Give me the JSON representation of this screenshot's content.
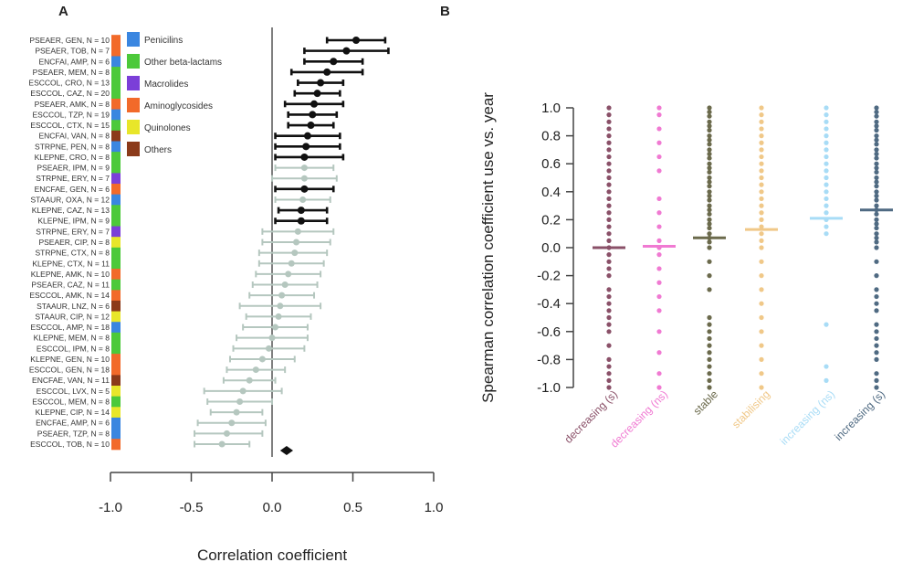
{
  "chart_data": [
    {
      "panel_label": "A",
      "type": "forest",
      "xlabel": "Correlation coefficient",
      "xlim": [
        -1.0,
        1.0
      ],
      "xticks": [
        "-1.0",
        "-0.5",
        "0.0",
        "0.5",
        "1.0"
      ],
      "legend": [
        {
          "label": "Penicilins",
          "color": "#3a86e0"
        },
        {
          "label": "Other beta-lactams",
          "color": "#4cc93a"
        },
        {
          "label": "Macrolides",
          "color": "#7b3fd8"
        },
        {
          "label": "Aminoglycosides",
          "color": "#f26a2a"
        },
        {
          "label": "Quinolones",
          "color": "#e8e62a"
        },
        {
          "label": "Others",
          "color": "#8b3a1a"
        }
      ],
      "rows": [
        {
          "label": "PSEAER, GEN, N = 10",
          "class": "Aminoglycosides",
          "est": 0.52,
          "lo": 0.34,
          "hi": 0.7,
          "significant": true
        },
        {
          "label": "PSEAER, TOB, N = 7",
          "class": "Aminoglycosides",
          "est": 0.46,
          "lo": 0.2,
          "hi": 0.72,
          "significant": true
        },
        {
          "label": "ENCFAI, AMP, N = 6",
          "class": "Penicilins",
          "est": 0.38,
          "lo": 0.2,
          "hi": 0.56,
          "significant": true
        },
        {
          "label": "PSEAER, MEM, N = 8",
          "class": "Other beta-lactams",
          "est": 0.34,
          "lo": 0.12,
          "hi": 0.56,
          "significant": true
        },
        {
          "label": "ESCCOL, CRO, N = 13",
          "class": "Other beta-lactams",
          "est": 0.3,
          "lo": 0.16,
          "hi": 0.44,
          "significant": true
        },
        {
          "label": "ESCCOL, CAZ, N = 20",
          "class": "Other beta-lactams",
          "est": 0.28,
          "lo": 0.14,
          "hi": 0.42,
          "significant": true
        },
        {
          "label": "PSEAER, AMK, N = 8",
          "class": "Aminoglycosides",
          "est": 0.26,
          "lo": 0.08,
          "hi": 0.44,
          "significant": true
        },
        {
          "label": "ESCCOL, TZP, N = 19",
          "class": "Penicilins",
          "est": 0.25,
          "lo": 0.1,
          "hi": 0.4,
          "significant": true
        },
        {
          "label": "ESCCOL, CTX, N = 15",
          "class": "Other beta-lactams",
          "est": 0.24,
          "lo": 0.1,
          "hi": 0.38,
          "significant": true
        },
        {
          "label": "ENCFAI, VAN, N = 8",
          "class": "Others",
          "est": 0.22,
          "lo": 0.02,
          "hi": 0.42,
          "significant": true
        },
        {
          "label": "STRPNE, PEN, N = 8",
          "class": "Penicilins",
          "est": 0.21,
          "lo": 0.02,
          "hi": 0.42,
          "significant": true
        },
        {
          "label": "KLEPNE, CRO, N = 8",
          "class": "Other beta-lactams",
          "est": 0.2,
          "lo": 0.02,
          "hi": 0.44,
          "significant": true
        },
        {
          "label": "PSEAER, IPM, N = 9",
          "class": "Other beta-lactams",
          "est": 0.2,
          "lo": 0.02,
          "hi": 0.38,
          "significant": false
        },
        {
          "label": "STRPNE, ERY, N = 7",
          "class": "Macrolides",
          "est": 0.2,
          "lo": 0.0,
          "hi": 0.4,
          "significant": false
        },
        {
          "label": "ENCFAE, GEN, N = 6",
          "class": "Aminoglycosides",
          "est": 0.2,
          "lo": 0.02,
          "hi": 0.38,
          "significant": true
        },
        {
          "label": "STAAUR, OXA, N = 12",
          "class": "Penicilins",
          "est": 0.19,
          "lo": 0.02,
          "hi": 0.36,
          "significant": false
        },
        {
          "label": "KLEPNE, CAZ, N = 13",
          "class": "Other beta-lactams",
          "est": 0.18,
          "lo": 0.04,
          "hi": 0.34,
          "significant": true
        },
        {
          "label": "KLEPNE, IPM, N = 9",
          "class": "Other beta-lactams",
          "est": 0.18,
          "lo": 0.02,
          "hi": 0.34,
          "significant": true
        },
        {
          "label": "STRPNE, ERY, N = 7",
          "class": "Macrolides",
          "est": 0.16,
          "lo": -0.06,
          "hi": 0.38,
          "significant": false
        },
        {
          "label": "PSEAER, CIP, N = 8",
          "class": "Quinolones",
          "est": 0.15,
          "lo": -0.06,
          "hi": 0.36,
          "significant": false
        },
        {
          "label": "STRPNE, CTX, N = 8",
          "class": "Other beta-lactams",
          "est": 0.14,
          "lo": -0.08,
          "hi": 0.34,
          "significant": false
        },
        {
          "label": "KLEPNE, CTX, N = 11",
          "class": "Other beta-lactams",
          "est": 0.12,
          "lo": -0.08,
          "hi": 0.32,
          "significant": false
        },
        {
          "label": "KLEPNE, AMK, N = 10",
          "class": "Aminoglycosides",
          "est": 0.1,
          "lo": -0.1,
          "hi": 0.3,
          "significant": false
        },
        {
          "label": "PSEAER, CAZ, N = 11",
          "class": "Other beta-lactams",
          "est": 0.08,
          "lo": -0.12,
          "hi": 0.28,
          "significant": false
        },
        {
          "label": "ESCCOL, AMK, N = 14",
          "class": "Aminoglycosides",
          "est": 0.06,
          "lo": -0.14,
          "hi": 0.26,
          "significant": false
        },
        {
          "label": "STAAUR, LNZ, N = 6",
          "class": "Others",
          "est": 0.05,
          "lo": -0.2,
          "hi": 0.3,
          "significant": false
        },
        {
          "label": "STAAUR, CIP, N = 12",
          "class": "Quinolones",
          "est": 0.04,
          "lo": -0.16,
          "hi": 0.24,
          "significant": false
        },
        {
          "label": "ESCCOL, AMP, N = 18",
          "class": "Penicilins",
          "est": 0.02,
          "lo": -0.18,
          "hi": 0.22,
          "significant": false
        },
        {
          "label": "KLEPNE, MEM, N = 8",
          "class": "Other beta-lactams",
          "est": 0.0,
          "lo": -0.22,
          "hi": 0.22,
          "significant": false
        },
        {
          "label": "ESCCOL, IPM, N = 8",
          "class": "Other beta-lactams",
          "est": -0.02,
          "lo": -0.24,
          "hi": 0.2,
          "significant": false
        },
        {
          "label": "KLEPNE, GEN, N = 10",
          "class": "Aminoglycosides",
          "est": -0.06,
          "lo": -0.26,
          "hi": 0.14,
          "significant": false
        },
        {
          "label": "ESCCOL, GEN, N = 18",
          "class": "Aminoglycosides",
          "est": -0.1,
          "lo": -0.28,
          "hi": 0.08,
          "significant": false
        },
        {
          "label": "ENCFAE, VAN, N = 11",
          "class": "Others",
          "est": -0.14,
          "lo": -0.3,
          "hi": 0.02,
          "significant": false
        },
        {
          "label": "ESCCOL, LVX, N = 5",
          "class": "Quinolones",
          "est": -0.18,
          "lo": -0.42,
          "hi": 0.06,
          "significant": false
        },
        {
          "label": "ESCCOL, MEM, N = 8",
          "class": "Other beta-lactams",
          "est": -0.2,
          "lo": -0.4,
          "hi": 0.0,
          "significant": false
        },
        {
          "label": "KLEPNE, CIP, N = 14",
          "class": "Quinolones",
          "est": -0.22,
          "lo": -0.38,
          "hi": -0.06,
          "significant": false
        },
        {
          "label": "ENCFAE, AMP, N = 6",
          "class": "Penicilins",
          "est": -0.25,
          "lo": -0.46,
          "hi": -0.04,
          "significant": false
        },
        {
          "label": "PSEAER, TZP, N = 8",
          "class": "Penicilins",
          "est": -0.28,
          "lo": -0.48,
          "hi": -0.06,
          "significant": false
        },
        {
          "label": "ESCCOL, TOB, N = 10",
          "class": "Aminoglycosides",
          "est": -0.31,
          "lo": -0.48,
          "hi": -0.14,
          "significant": false
        }
      ],
      "summary": {
        "est": 0.09,
        "lo": 0.05,
        "hi": 0.13
      }
    },
    {
      "panel_label": "B",
      "type": "strip",
      "ylabel": "Spearman correlation coefficient use vs. year",
      "ylim": [
        -1.0,
        1.0
      ],
      "yticks": [
        "1.0",
        "0.8",
        "0.6",
        "0.4",
        "0.2",
        "0.0",
        "-0.2",
        "-0.4",
        "-0.6",
        "-0.8",
        "-1.0"
      ],
      "categories": [
        {
          "label": "decreasing (s)",
          "color": "#8a5068",
          "median": 0.0,
          "points": [
            1.0,
            0.95,
            0.9,
            0.85,
            0.8,
            0.75,
            0.7,
            0.65,
            0.6,
            0.55,
            0.5,
            0.45,
            0.4,
            0.35,
            0.3,
            0.25,
            0.2,
            0.15,
            0.1,
            0.05,
            0.0,
            -0.05,
            -0.1,
            -0.15,
            -0.2,
            -0.3,
            -0.35,
            -0.4,
            -0.45,
            -0.5,
            -0.55,
            -0.6,
            -0.7,
            -0.8,
            -0.85,
            -0.9,
            -0.95,
            -1.0
          ]
        },
        {
          "label": "decreasing (ns)",
          "color": "#f07ad2",
          "median": 0.01,
          "points": [
            1.0,
            0.95,
            0.85,
            0.75,
            0.65,
            0.55,
            0.35,
            0.25,
            0.15,
            0.05,
            0.0,
            -0.05,
            -0.15,
            -0.25,
            -0.35,
            -0.45,
            -0.6,
            -0.75,
            -0.9,
            -1.0
          ]
        },
        {
          "label": "stable",
          "color": "#6b6a4c",
          "median": 0.07,
          "points": [
            1.0,
            0.97,
            0.94,
            0.9,
            0.87,
            0.84,
            0.8,
            0.77,
            0.74,
            0.7,
            0.67,
            0.64,
            0.6,
            0.57,
            0.54,
            0.5,
            0.47,
            0.44,
            0.4,
            0.37,
            0.34,
            0.3,
            0.27,
            0.24,
            0.2,
            0.17,
            0.14,
            0.1,
            0.07,
            0.04,
            0.0,
            -0.1,
            -0.2,
            -0.3,
            -0.5,
            -0.55,
            -0.6,
            -0.65,
            -0.7,
            -0.75,
            -0.8,
            -0.85,
            -0.9,
            -0.95,
            -1.0
          ]
        },
        {
          "label": "stabilising",
          "color": "#f0c888",
          "median": 0.13,
          "points": [
            1.0,
            0.95,
            0.9,
            0.85,
            0.8,
            0.75,
            0.7,
            0.65,
            0.6,
            0.55,
            0.5,
            0.45,
            0.4,
            0.35,
            0.3,
            0.25,
            0.2,
            0.15,
            0.1,
            0.05,
            0.0,
            -0.1,
            -0.2,
            -0.3,
            -0.4,
            -0.5,
            -0.6,
            -0.7,
            -0.8,
            -0.9,
            -1.0
          ]
        },
        {
          "label": "increasing (ns)",
          "color": "#a8dcf6",
          "median": 0.21,
          "points": [
            1.0,
            0.95,
            0.9,
            0.85,
            0.8,
            0.75,
            0.7,
            0.65,
            0.6,
            0.55,
            0.5,
            0.45,
            0.4,
            0.35,
            0.3,
            0.25,
            0.2,
            0.15,
            0.1,
            -0.55,
            -0.85,
            -0.95
          ]
        },
        {
          "label": "increasing (s)",
          "color": "#4f6a82",
          "median": 0.27,
          "points": [
            1.0,
            0.97,
            0.94,
            0.9,
            0.87,
            0.84,
            0.8,
            0.77,
            0.74,
            0.7,
            0.67,
            0.64,
            0.6,
            0.57,
            0.54,
            0.5,
            0.47,
            0.44,
            0.4,
            0.37,
            0.34,
            0.3,
            0.27,
            0.24,
            0.2,
            0.17,
            0.14,
            0.1,
            0.07,
            0.04,
            0.0,
            -0.1,
            -0.2,
            -0.3,
            -0.35,
            -0.4,
            -0.45,
            -0.55,
            -0.6,
            -0.65,
            -0.7,
            -0.75,
            -0.8,
            -0.9,
            -0.95,
            -1.0
          ]
        }
      ]
    }
  ]
}
